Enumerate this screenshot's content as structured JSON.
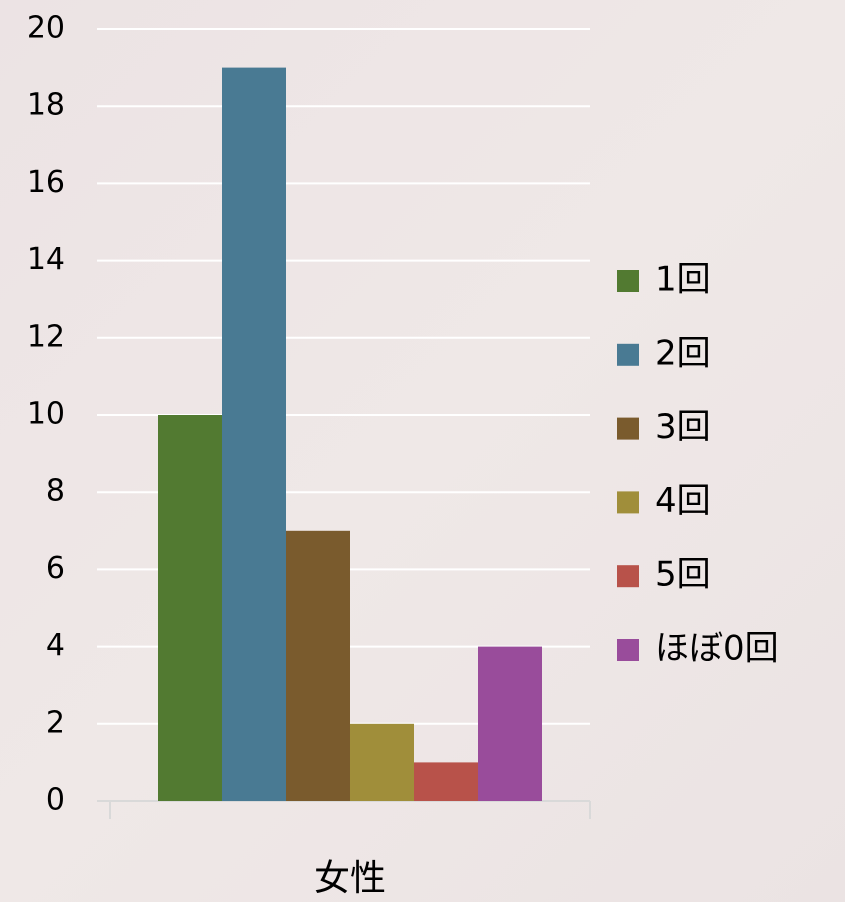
{
  "chart_data": {
    "type": "bar",
    "categories": [
      "女性"
    ],
    "series": [
      {
        "name": "1回",
        "color": "#527a31",
        "values": [
          10
        ]
      },
      {
        "name": "2回",
        "color": "#497a93",
        "values": [
          19
        ]
      },
      {
        "name": "3回",
        "color": "#7a5b2d",
        "values": [
          7
        ]
      },
      {
        "name": "4回",
        "color": "#a08e3a",
        "values": [
          2
        ]
      },
      {
        "name": "5回",
        "color": "#b8524a",
        "values": [
          1
        ]
      },
      {
        "name": "ほぼ0回",
        "color": "#994c9b",
        "values": [
          4
        ]
      }
    ],
    "ylim": [
      0,
      20
    ],
    "yticks": [
      0,
      2,
      4,
      6,
      8,
      10,
      12,
      14,
      16,
      18,
      20
    ],
    "grid": true,
    "legend": "right"
  }
}
